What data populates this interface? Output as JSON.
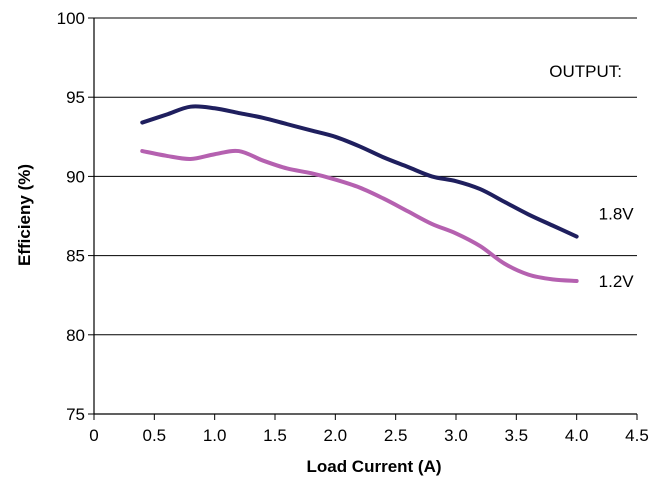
{
  "chart_data": {
    "type": "line",
    "xlabel": "Load Current (A)",
    "ylabel": "Efficieny (%)",
    "xlim": [
      0,
      4.5
    ],
    "ylim": [
      75,
      100
    ],
    "xticks": [
      "0",
      "0.5",
      "1.0",
      "1.5",
      "2.0",
      "2.5",
      "3.0",
      "3.5",
      "4.0",
      "4.5"
    ],
    "yticks": [
      "75",
      "80",
      "85",
      "90",
      "95",
      "100"
    ],
    "grid": "horizontal",
    "annotations": {
      "legend_title": "OUTPUT:"
    },
    "series": [
      {
        "name": "1.8V",
        "color": "#1f1f5e",
        "x": [
          0.4,
          0.6,
          0.8,
          1.0,
          1.2,
          1.4,
          1.6,
          1.8,
          2.0,
          2.2,
          2.4,
          2.6,
          2.8,
          3.0,
          3.2,
          3.4,
          3.6,
          3.8,
          4.0
        ],
        "y": [
          93.4,
          93.9,
          94.4,
          94.3,
          94.0,
          93.7,
          93.3,
          92.9,
          92.5,
          91.9,
          91.2,
          90.6,
          90.0,
          89.7,
          89.2,
          88.4,
          87.6,
          86.9,
          86.2
        ]
      },
      {
        "name": "1.2V",
        "color": "#b561b0",
        "x": [
          0.4,
          0.6,
          0.8,
          1.0,
          1.2,
          1.4,
          1.6,
          1.8,
          2.0,
          2.2,
          2.4,
          2.6,
          2.8,
          3.0,
          3.2,
          3.4,
          3.6,
          3.8,
          4.0
        ],
        "y": [
          91.6,
          91.3,
          91.1,
          91.4,
          91.6,
          91.0,
          90.5,
          90.2,
          89.8,
          89.3,
          88.6,
          87.8,
          87.0,
          86.4,
          85.6,
          84.5,
          83.8,
          83.5,
          83.4
        ]
      }
    ]
  }
}
